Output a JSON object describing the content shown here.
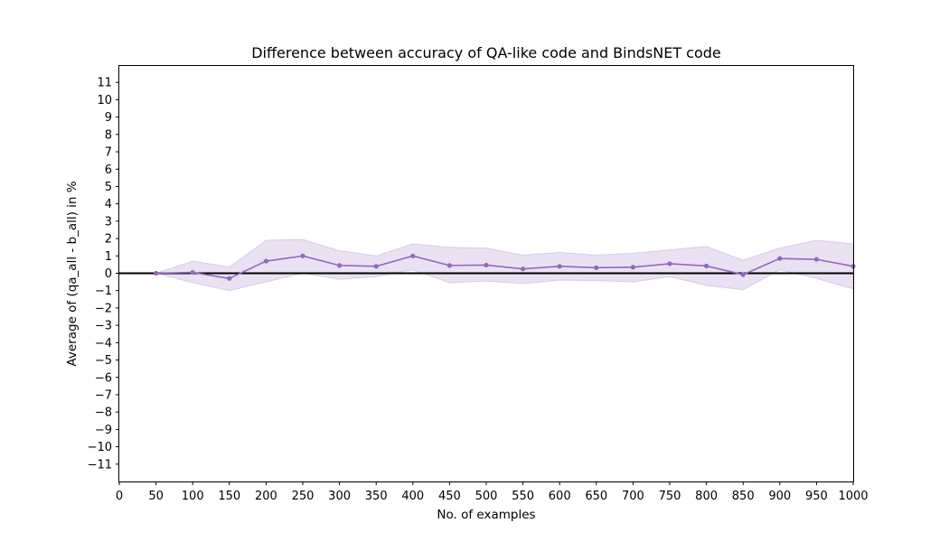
{
  "chart_data": {
    "type": "line",
    "title": "Difference between accuracy of QA-like code and BindsNET code",
    "xlabel": "No. of examples",
    "ylabel": "Average of (qa_all - b_all) in %",
    "xlim": [
      0,
      1000
    ],
    "ylim": [
      -12,
      12
    ],
    "x_ticks": [
      0,
      50,
      100,
      150,
      200,
      250,
      300,
      350,
      400,
      450,
      500,
      550,
      600,
      650,
      700,
      750,
      800,
      850,
      900,
      950,
      1000
    ],
    "y_ticks": [
      -11,
      -10,
      -9,
      -8,
      -7,
      -6,
      -5,
      -4,
      -3,
      -2,
      -1,
      0,
      1,
      2,
      3,
      4,
      5,
      6,
      7,
      8,
      9,
      10,
      11
    ],
    "x_tick_labels": [
      "0",
      "50",
      "100",
      "150",
      "200",
      "250",
      "300",
      "350",
      "400",
      "450",
      "500",
      "550",
      "600",
      "650",
      "700",
      "750",
      "800",
      "850",
      "900",
      "950",
      "1000"
    ],
    "y_tick_labels": [
      "−11",
      "−10",
      "−9",
      "−8",
      "−7",
      "−6",
      "−5",
      "−4",
      "−3",
      "−2",
      "−1",
      "0",
      "1",
      "2",
      "3",
      "4",
      "5",
      "6",
      "7",
      "8",
      "9",
      "10",
      "11"
    ],
    "grid": false,
    "reference_line_y": 0,
    "series": [
      {
        "x": [
          50,
          100,
          150,
          200,
          250,
          300,
          350,
          400,
          450,
          500,
          550,
          600,
          650,
          700,
          750,
          800,
          850,
          900,
          950,
          1000
        ],
        "values": [
          0.0,
          0.05,
          -0.3,
          0.7,
          1.0,
          0.45,
          0.4,
          1.0,
          0.45,
          0.47,
          0.25,
          0.4,
          0.32,
          0.35,
          0.55,
          0.42,
          -0.08,
          0.85,
          0.8,
          0.4
        ],
        "lower": [
          0.0,
          -0.55,
          -1.0,
          -0.5,
          0.0,
          -0.35,
          -0.2,
          0.2,
          -0.55,
          -0.45,
          -0.6,
          -0.4,
          -0.42,
          -0.5,
          -0.2,
          -0.7,
          -0.95,
          0.2,
          -0.3,
          -0.9
        ],
        "upper": [
          0.0,
          0.7,
          0.35,
          1.9,
          1.95,
          1.3,
          1.0,
          1.7,
          1.5,
          1.45,
          1.05,
          1.2,
          1.05,
          1.15,
          1.35,
          1.55,
          0.75,
          1.45,
          1.9,
          1.7
        ],
        "color": "#9467bd",
        "band_color": "#9467bd"
      }
    ]
  }
}
